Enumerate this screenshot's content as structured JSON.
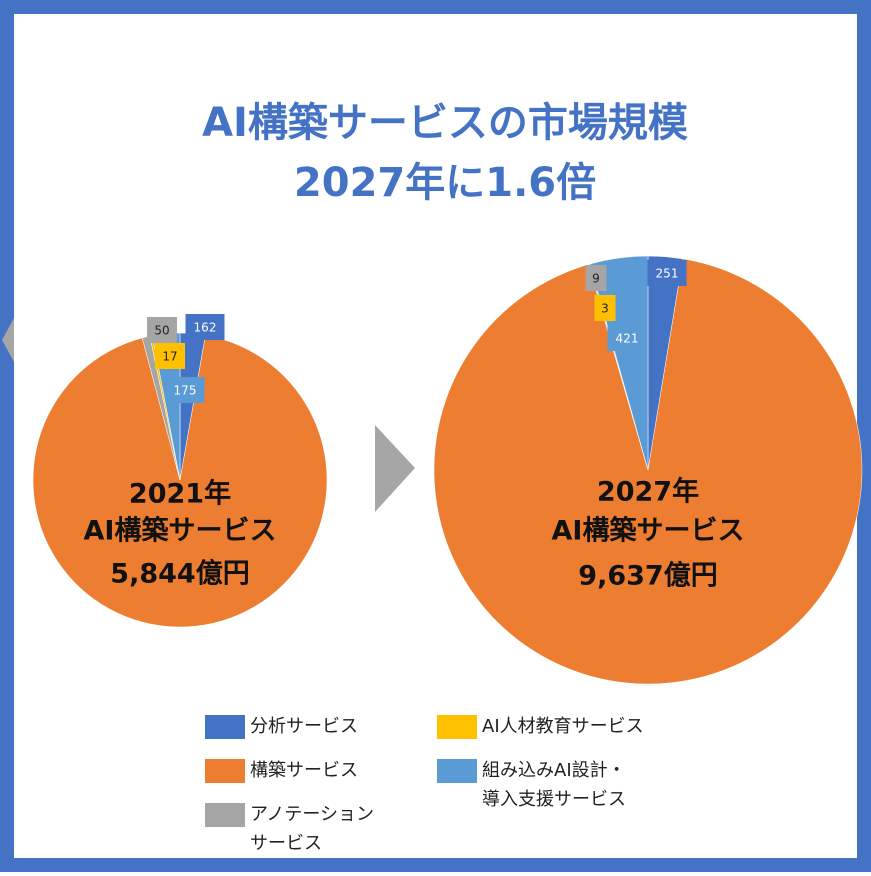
{
  "title": [
    "AI構築サービスの市場規模",
    "2027年に1.6倍"
  ],
  "legend": {
    "categories": [
      "分析サービス",
      "構築サービス",
      "アノテーション\nサービス",
      "AI人材教育サービス",
      "組み込みAI設計・\n導入支援サービス"
    ],
    "colors": [
      "#4472c4",
      "#ed7d31",
      "#a5a5a5",
      "#ffc000",
      "#5b9bd5"
    ]
  },
  "chart_data": [
    {
      "type": "pie",
      "center_label": [
        "2021年",
        "AI構築サービス",
        "5,844億円"
      ],
      "values": [
        162,
        5440,
        50,
        17,
        175
      ],
      "value_labels": [
        "162",
        null,
        "50",
        "17",
        "175"
      ]
    },
    {
      "type": "pie",
      "center_label": [
        "2027年",
        "AI構築サービス",
        "9,637億円"
      ],
      "values": [
        251,
        8953,
        9,
        3,
        421
      ],
      "value_labels": [
        "251",
        null,
        "9",
        "3",
        "421"
      ]
    }
  ]
}
